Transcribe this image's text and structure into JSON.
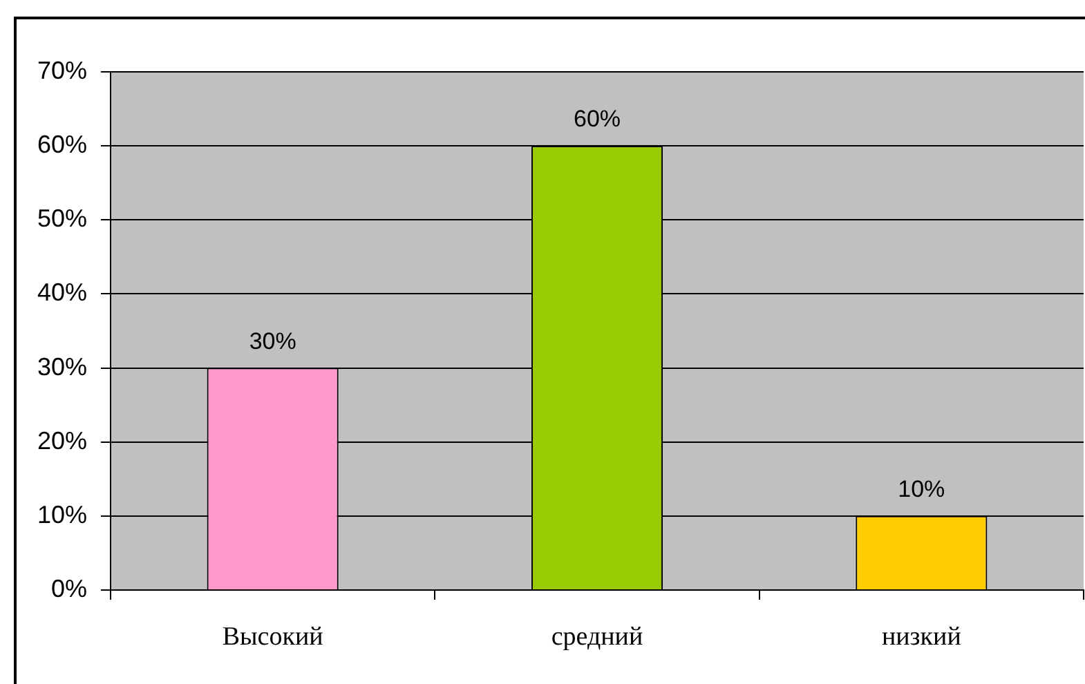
{
  "chart_data": {
    "type": "bar",
    "categories": [
      "Высокий",
      "средний",
      "низкий"
    ],
    "values": [
      30,
      60,
      10
    ],
    "colors": [
      "#ff99cc",
      "#99cc00",
      "#ffcc00"
    ],
    "value_labels": [
      "30%",
      "60%",
      "10%"
    ],
    "ylim": [
      0,
      70
    ],
    "yticks": [
      {
        "value": 0,
        "label": "0%"
      },
      {
        "value": 10,
        "label": "10%"
      },
      {
        "value": 20,
        "label": "20%"
      },
      {
        "value": 30,
        "label": "30%"
      },
      {
        "value": 40,
        "label": "40%"
      },
      {
        "value": 50,
        "label": "50%"
      },
      {
        "value": 60,
        "label": "60%"
      },
      {
        "value": 70,
        "label": "70%"
      }
    ],
    "grid": "y"
  }
}
